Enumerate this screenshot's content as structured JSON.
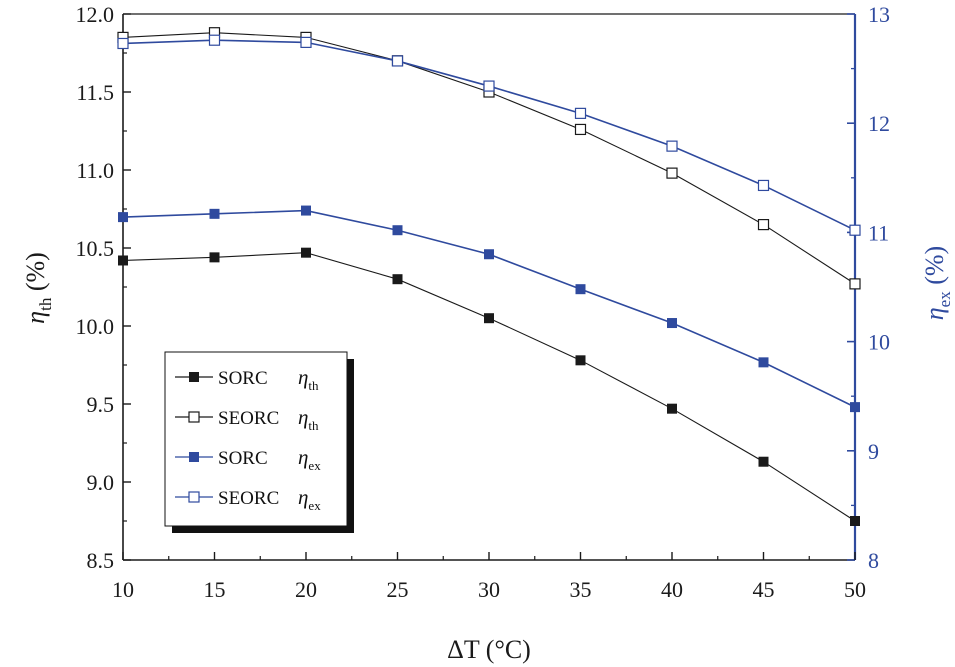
{
  "chart_data": {
    "type": "line",
    "title": "",
    "x": [
      10,
      15,
      20,
      25,
      30,
      35,
      40,
      45,
      50
    ],
    "xlabel": "ΔT (°C)",
    "xlim": [
      10,
      50
    ],
    "xticks": [
      "10",
      "15",
      "20",
      "25",
      "30",
      "35",
      "40",
      "45",
      "50"
    ],
    "ylabel": {
      "symbol": "η",
      "sub": "th",
      "unit": "(%)"
    },
    "ylim": [
      8.5,
      12.0
    ],
    "yticks": [
      "8.5",
      "9.0",
      "9.5",
      "10.0",
      "10.5",
      "11.0",
      "11.5",
      "12.0"
    ],
    "y2label": {
      "symbol": "η",
      "sub": "ex",
      "unit": "(%)"
    },
    "y2lim": [
      8,
      13
    ],
    "y2ticks": [
      "8",
      "9",
      "10",
      "11",
      "12",
      "13"
    ],
    "colors": {
      "black": "#1a1a1a",
      "blue": "#2f4a9e"
    },
    "series": [
      {
        "name": "SORC",
        "symbol": "η",
        "sub": "th",
        "axis": "left",
        "marker": "filled",
        "color": "#1a1a1a",
        "values": [
          10.42,
          10.44,
          10.47,
          10.3,
          10.05,
          9.78,
          9.47,
          9.13,
          8.75
        ]
      },
      {
        "name": "SEORC",
        "symbol": "η",
        "sub": "th",
        "axis": "left",
        "marker": "open",
        "color": "#1a1a1a",
        "values": [
          11.85,
          11.88,
          11.85,
          11.7,
          11.5,
          11.26,
          10.98,
          10.65,
          10.27
        ]
      },
      {
        "name": "SORC",
        "symbol": "η",
        "sub": "ex",
        "axis": "right",
        "marker": "filled",
        "color": "#2f4a9e",
        "values": [
          11.14,
          11.17,
          11.2,
          11.02,
          10.8,
          10.48,
          10.17,
          9.81,
          9.4
        ]
      },
      {
        "name": "SEORC",
        "symbol": "η",
        "sub": "ex",
        "axis": "right",
        "marker": "open",
        "color": "#2f4a9e",
        "values": [
          12.73,
          12.76,
          12.74,
          12.57,
          12.34,
          12.09,
          11.79,
          11.43,
          11.02
        ]
      }
    ],
    "legend": "center-left"
  }
}
